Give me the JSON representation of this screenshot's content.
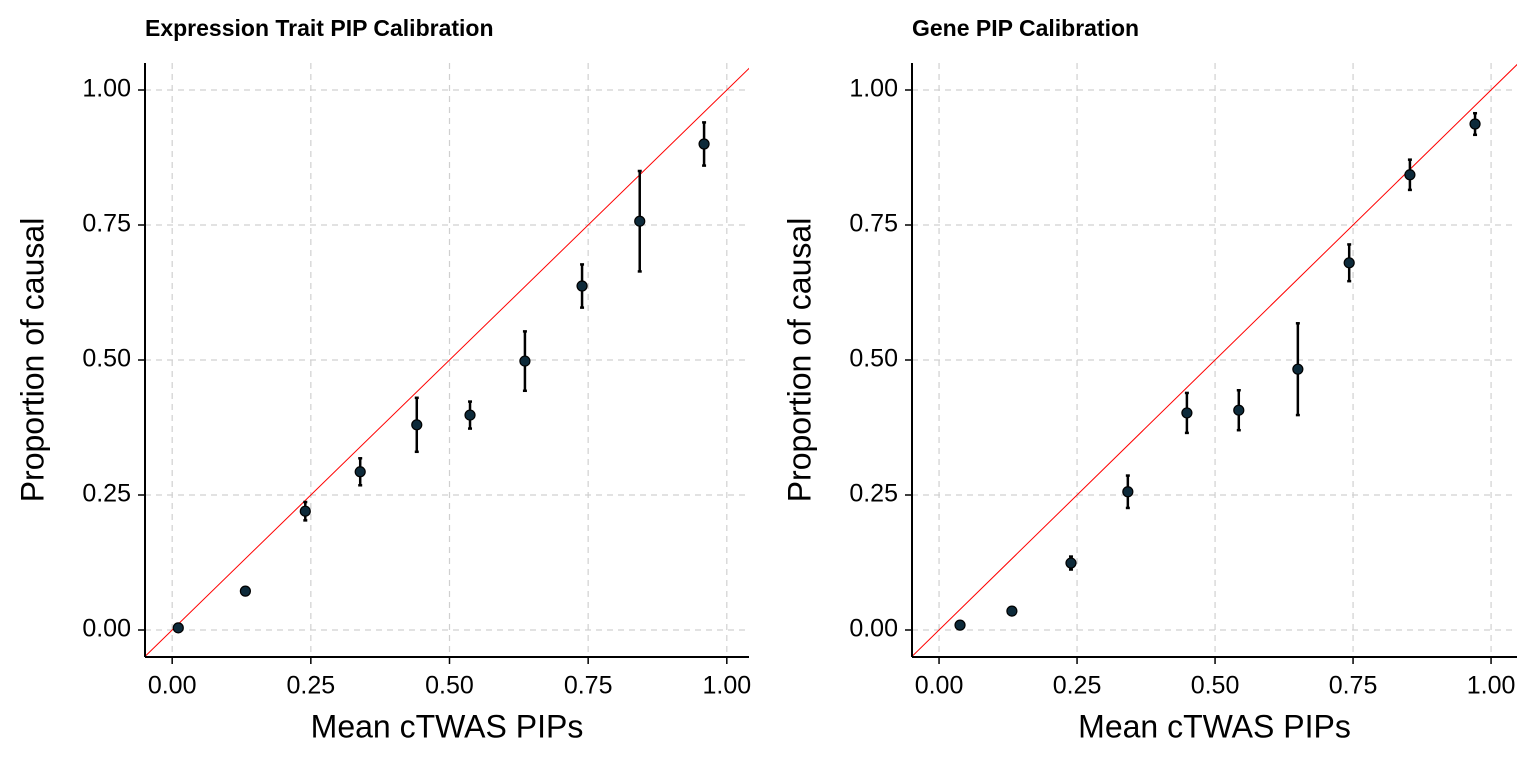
{
  "chart_data": [
    {
      "type": "scatter",
      "title": "Expression Trait PIP Calibration",
      "x_label": "Mean cTWAS PIPs",
      "y_label": "Proportion of causal",
      "x": [
        0.011,
        0.132,
        0.24,
        0.339,
        0.441,
        0.537,
        0.636,
        0.739,
        0.843,
        0.959
      ],
      "values": [
        0.004,
        0.072,
        0.22,
        0.293,
        0.38,
        0.398,
        0.498,
        0.637,
        0.757,
        0.9
      ],
      "errors": [
        0.003,
        0.006,
        0.017,
        0.025,
        0.05,
        0.025,
        0.055,
        0.04,
        0.093,
        0.04
      ],
      "color": "#0d2a3a",
      "diagonal_color": "#ff0000",
      "grid": true,
      "xlim": [
        -0.049,
        1.04
      ],
      "ylim": [
        -0.05,
        1.05
      ],
      "xticks": [
        {
          "value": 0,
          "label": "0.00"
        },
        {
          "value": 0.25,
          "label": "0.25"
        },
        {
          "value": 0.5,
          "label": "0.50"
        },
        {
          "value": 0.75,
          "label": "0.75"
        },
        {
          "value": 1,
          "label": "1.00"
        }
      ],
      "yticks": [
        {
          "value": 0,
          "label": "0.00"
        },
        {
          "value": 0.25,
          "label": "0.25"
        },
        {
          "value": 0.5,
          "label": "0.50"
        },
        {
          "value": 0.75,
          "label": "0.75"
        },
        {
          "value": 1,
          "label": "1.00"
        }
      ]
    },
    {
      "type": "scatter",
      "title": "Gene PIP Calibration",
      "x_label": "Mean cTWAS PIPs",
      "y_label": "Proportion of causal",
      "x": [
        0.038,
        0.132,
        0.239,
        0.342,
        0.449,
        0.543,
        0.65,
        0.743,
        0.853,
        0.971
      ],
      "values": [
        0.009,
        0.035,
        0.124,
        0.256,
        0.402,
        0.407,
        0.483,
        0.68,
        0.843,
        0.937
      ],
      "errors": [
        0.003,
        0.004,
        0.012,
        0.03,
        0.037,
        0.037,
        0.085,
        0.034,
        0.028,
        0.02
      ],
      "color": "#0d2a3a",
      "diagonal_color": "#ff0000",
      "grid": true,
      "xlim": [
        -0.049,
        1.047
      ],
      "ylim": [
        -0.05,
        1.05
      ],
      "xticks": [
        {
          "value": 0,
          "label": "0.00"
        },
        {
          "value": 0.25,
          "label": "0.25"
        },
        {
          "value": 0.5,
          "label": "0.50"
        },
        {
          "value": 0.75,
          "label": "0.75"
        },
        {
          "value": 1,
          "label": "1.00"
        }
      ],
      "yticks": [
        {
          "value": 0,
          "label": "0.00"
        },
        {
          "value": 0.25,
          "label": "0.25"
        },
        {
          "value": 0.5,
          "label": "0.50"
        },
        {
          "value": 0.75,
          "label": "0.75"
        },
        {
          "value": 1,
          "label": "1.00"
        }
      ]
    }
  ]
}
